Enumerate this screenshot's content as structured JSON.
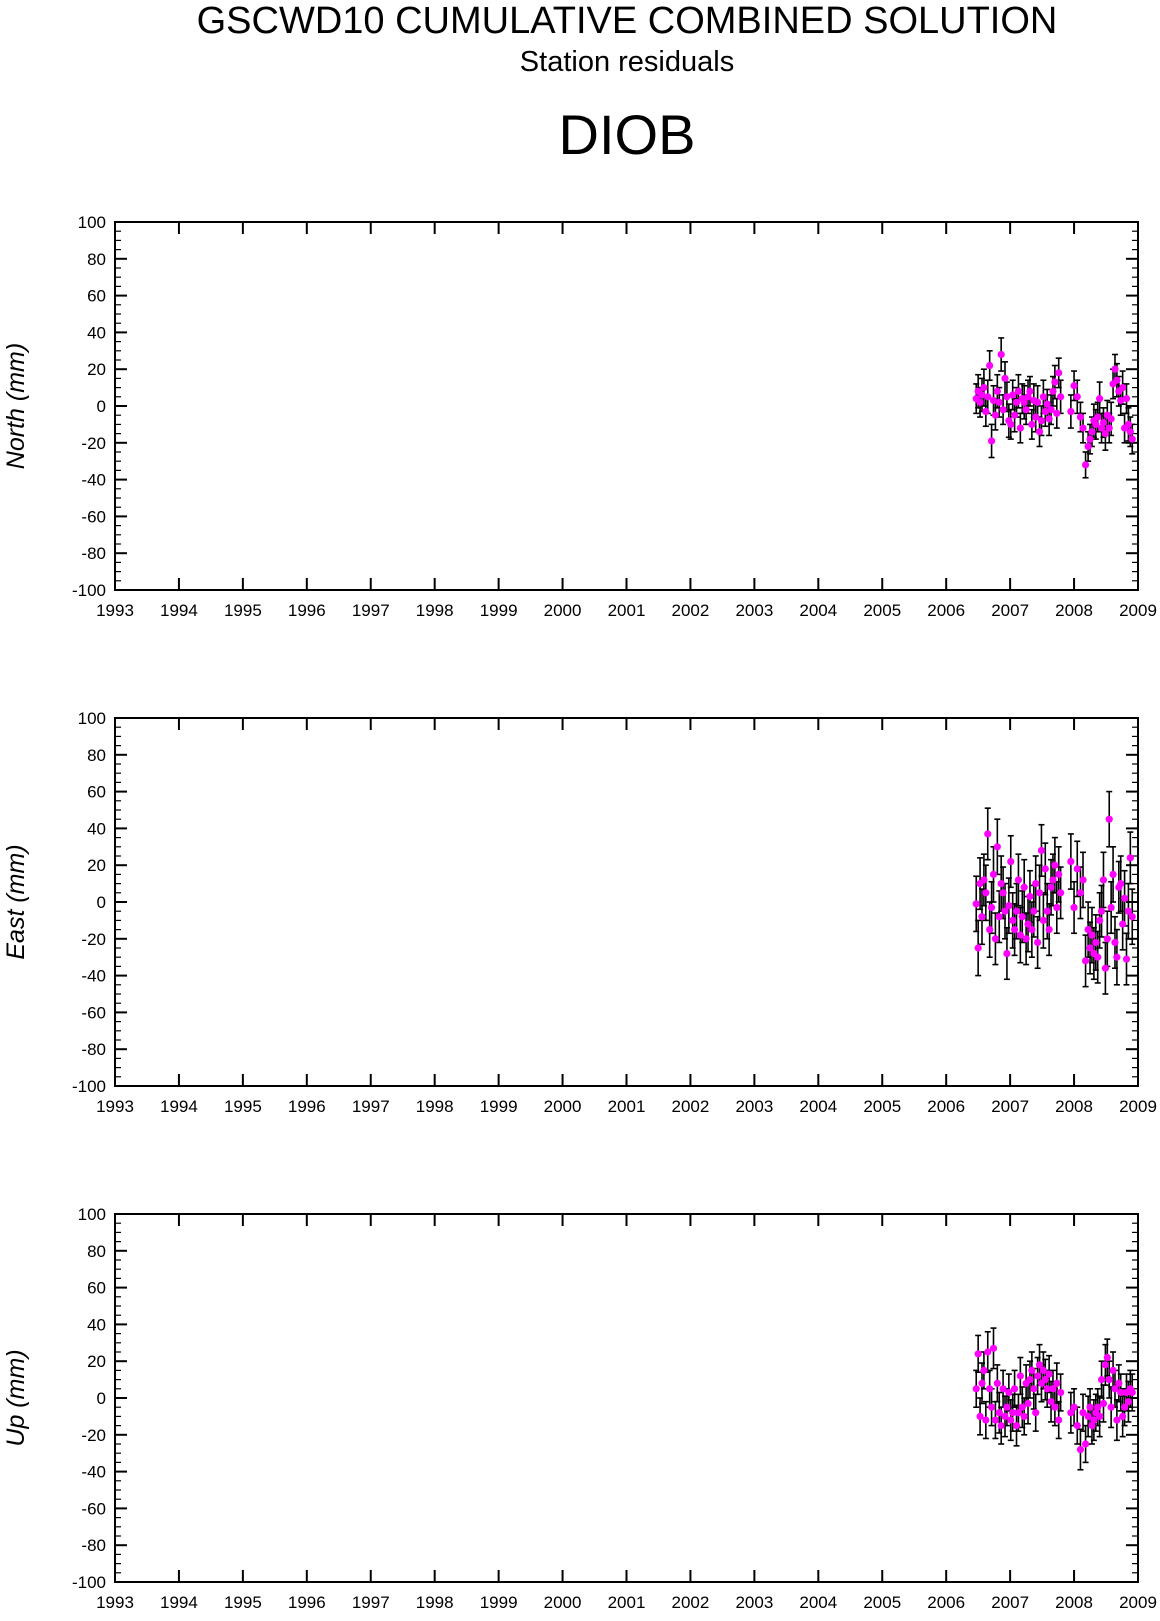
{
  "header": {
    "title": "GSCWD10 CUMULATIVE COMBINED SOLUTION",
    "subtitle": "Station residuals",
    "station": "DIOB"
  },
  "colors": {
    "marker": "#ff00ff",
    "errorbar": "#000000",
    "axis": "#000000"
  },
  "chart_data": [
    {
      "type": "scatter",
      "ylabel": "North (mm)",
      "xlim": [
        1993,
        2009
      ],
      "ylim": [
        -100,
        100
      ],
      "yticks": [
        "100",
        "80",
        "60",
        "40",
        "20",
        "0",
        "-20",
        "-40",
        "-60",
        "-80",
        "-100"
      ],
      "xticks": [
        "1993",
        "1994",
        "1995",
        "1996",
        "1997",
        "1998",
        "1999",
        "2000",
        "2001",
        "2002",
        "2003",
        "2004",
        "2005",
        "2006",
        "2007",
        "2008",
        "2009"
      ],
      "series": [
        {
          "x": [
            2006.47,
            2006.5,
            2006.53,
            2006.56,
            2006.59,
            2006.62,
            2006.65,
            2006.68,
            2006.71,
            2006.74,
            2006.77,
            2006.8,
            2006.83,
            2006.86,
            2006.89,
            2006.92,
            2006.95,
            2006.98,
            2007.01,
            2007.04,
            2007.07,
            2007.1,
            2007.13,
            2007.16,
            2007.19,
            2007.22,
            2007.25,
            2007.28,
            2007.31,
            2007.34,
            2007.37,
            2007.4,
            2007.43,
            2007.46,
            2007.49,
            2007.52,
            2007.55,
            2007.58,
            2007.61,
            2007.64,
            2007.67,
            2007.7,
            2007.73,
            2007.76,
            2007.79,
            2007.95,
            2008.0,
            2008.05,
            2008.1,
            2008.14,
            2008.18,
            2008.22,
            2008.25,
            2008.28,
            2008.31,
            2008.34,
            2008.37,
            2008.4,
            2008.43,
            2008.46,
            2008.49,
            2008.52,
            2008.55,
            2008.58,
            2008.61,
            2008.64,
            2008.67,
            2008.7,
            2008.73,
            2008.76,
            2008.79,
            2008.82,
            2008.85,
            2008.88,
            2008.91
          ],
          "y": [
            4,
            8,
            2,
            6,
            10,
            -3,
            5,
            22,
            -19,
            3,
            -5,
            8,
            2,
            28,
            -2,
            15,
            5,
            -8,
            -10,
            6,
            -5,
            2,
            8,
            -12,
            4,
            2,
            -2,
            5,
            8,
            -10,
            3,
            -6,
            2,
            -14,
            -8,
            5,
            -3,
            1,
            -7,
            -2,
            8,
            13,
            -4,
            18,
            5,
            -3,
            11,
            5,
            -6,
            -12,
            -32,
            -22,
            -18,
            -14,
            -8,
            -10,
            -6,
            4,
            -12,
            -9,
            -15,
            -5,
            -12,
            -7,
            12,
            20,
            14,
            8,
            3,
            10,
            -12,
            4,
            -10,
            -14,
            -18
          ],
          "err": [
            8,
            9,
            8,
            9,
            10,
            8,
            9,
            8,
            9,
            8,
            8,
            9,
            8,
            9,
            8,
            9,
            8,
            9,
            8,
            8,
            9,
            8,
            9,
            8,
            8,
            9,
            8,
            9,
            8,
            8,
            9,
            8,
            9,
            8,
            8,
            9,
            8,
            8,
            9,
            8,
            8,
            9,
            8,
            8,
            9,
            9,
            8,
            9,
            8,
            8,
            7,
            8,
            8,
            8,
            9,
            8,
            8,
            9,
            8,
            8,
            9,
            8,
            8,
            9,
            8,
            8,
            9,
            8,
            8,
            9,
            8,
            8,
            9,
            8,
            8
          ]
        }
      ]
    },
    {
      "type": "scatter",
      "ylabel": "East (mm)",
      "xlim": [
        1993,
        2009
      ],
      "ylim": [
        -100,
        100
      ],
      "yticks": [
        "100",
        "80",
        "60",
        "40",
        "20",
        "0",
        "-20",
        "-40",
        "-60",
        "-80",
        "-100"
      ],
      "xticks": [
        "1993",
        "1994",
        "1995",
        "1996",
        "1997",
        "1998",
        "1999",
        "2000",
        "2001",
        "2002",
        "2003",
        "2004",
        "2005",
        "2006",
        "2007",
        "2008",
        "2009"
      ],
      "series": [
        {
          "x": [
            2006.47,
            2006.5,
            2006.53,
            2006.56,
            2006.59,
            2006.62,
            2006.65,
            2006.68,
            2006.71,
            2006.74,
            2006.77,
            2006.8,
            2006.83,
            2006.86,
            2006.89,
            2006.92,
            2006.95,
            2006.98,
            2007.01,
            2007.04,
            2007.07,
            2007.1,
            2007.13,
            2007.16,
            2007.19,
            2007.22,
            2007.25,
            2007.28,
            2007.31,
            2007.34,
            2007.37,
            2007.4,
            2007.43,
            2007.46,
            2007.49,
            2007.52,
            2007.55,
            2007.58,
            2007.61,
            2007.64,
            2007.67,
            2007.7,
            2007.73,
            2007.76,
            2007.79,
            2007.95,
            2008.0,
            2008.05,
            2008.1,
            2008.14,
            2008.18,
            2008.22,
            2008.25,
            2008.28,
            2008.31,
            2008.34,
            2008.37,
            2008.4,
            2008.43,
            2008.46,
            2008.49,
            2008.52,
            2008.55,
            2008.58,
            2008.61,
            2008.64,
            2008.67,
            2008.7,
            2008.73,
            2008.76,
            2008.79,
            2008.82,
            2008.85,
            2008.88,
            2008.91
          ],
          "y": [
            -1,
            -25,
            10,
            -8,
            12,
            5,
            37,
            -15,
            -3,
            15,
            -20,
            30,
            -8,
            10,
            5,
            -5,
            -28,
            -2,
            22,
            -10,
            -15,
            -5,
            12,
            -18,
            -8,
            8,
            -20,
            -12,
            3,
            -15,
            -5,
            10,
            -22,
            5,
            28,
            -10,
            18,
            -5,
            -15,
            8,
            12,
            20,
            -3,
            15,
            5,
            22,
            -3,
            18,
            5,
            12,
            -32,
            -15,
            -25,
            -18,
            -28,
            -22,
            -30,
            -10,
            -5,
            12,
            -36,
            -20,
            45,
            -3,
            15,
            -22,
            -30,
            8,
            10,
            -12,
            2,
            -31,
            -5,
            24,
            -8
          ],
          "err": [
            15,
            15,
            14,
            15,
            14,
            15,
            14,
            15,
            14,
            15,
            14,
            15,
            14,
            15,
            14,
            15,
            14,
            15,
            14,
            15,
            14,
            15,
            14,
            15,
            14,
            15,
            14,
            15,
            14,
            15,
            14,
            15,
            14,
            15,
            14,
            15,
            14,
            15,
            14,
            15,
            14,
            15,
            14,
            15,
            14,
            15,
            14,
            15,
            14,
            15,
            14,
            15,
            14,
            15,
            14,
            15,
            14,
            15,
            14,
            15,
            14,
            15,
            15,
            14,
            15,
            14,
            15,
            14,
            15,
            14,
            15,
            14,
            15,
            14,
            15
          ]
        }
      ]
    },
    {
      "type": "scatter",
      "ylabel": "Up (mm)",
      "xlim": [
        1993,
        2009
      ],
      "ylim": [
        -100,
        100
      ],
      "yticks": [
        "100",
        "80",
        "60",
        "40",
        "20",
        "0",
        "-20",
        "-40",
        "-60",
        "-80",
        "-100"
      ],
      "xticks": [
        "1993",
        "1994",
        "1995",
        "1996",
        "1997",
        "1998",
        "1999",
        "2000",
        "2001",
        "2002",
        "2003",
        "2004",
        "2005",
        "2006",
        "2007",
        "2008",
        "2009"
      ],
      "series": [
        {
          "x": [
            2006.47,
            2006.5,
            2006.53,
            2006.56,
            2006.59,
            2006.62,
            2006.65,
            2006.68,
            2006.71,
            2006.74,
            2006.77,
            2006.8,
            2006.83,
            2006.86,
            2006.89,
            2006.92,
            2006.95,
            2006.98,
            2007.01,
            2007.04,
            2007.07,
            2007.1,
            2007.13,
            2007.16,
            2007.19,
            2007.22,
            2007.25,
            2007.28,
            2007.31,
            2007.34,
            2007.37,
            2007.4,
            2007.43,
            2007.46,
            2007.49,
            2007.52,
            2007.55,
            2007.58,
            2007.61,
            2007.64,
            2007.67,
            2007.7,
            2007.73,
            2007.76,
            2007.79,
            2007.95,
            2008.0,
            2008.05,
            2008.1,
            2008.14,
            2008.18,
            2008.22,
            2008.25,
            2008.28,
            2008.31,
            2008.34,
            2008.37,
            2008.4,
            2008.43,
            2008.46,
            2008.49,
            2008.52,
            2008.55,
            2008.58,
            2008.61,
            2008.64,
            2008.67,
            2008.7,
            2008.73,
            2008.76,
            2008.79,
            2008.82,
            2008.85,
            2008.88,
            2008.91
          ],
          "y": [
            5,
            24,
            -10,
            8,
            15,
            -12,
            25,
            5,
            -5,
            27,
            -12,
            8,
            -8,
            -15,
            5,
            -10,
            -5,
            3,
            -12,
            -8,
            5,
            -15,
            -8,
            12,
            -5,
            -10,
            8,
            -3,
            10,
            15,
            5,
            -8,
            12,
            18,
            8,
            15,
            10,
            5,
            13,
            -2,
            5,
            -5,
            8,
            -12,
            3,
            -8,
            -5,
            -15,
            -28,
            -8,
            -25,
            -10,
            -5,
            -15,
            -12,
            -8,
            -5,
            -10,
            10,
            -3,
            18,
            22,
            10,
            -5,
            15,
            5,
            -12,
            8,
            3,
            -10,
            -5,
            3,
            -2,
            5,
            3
          ],
          "err": [
            10,
            10,
            10,
            11,
            10,
            10,
            11,
            10,
            10,
            11,
            10,
            10,
            11,
            10,
            10,
            11,
            10,
            10,
            11,
            10,
            10,
            11,
            10,
            10,
            11,
            10,
            10,
            11,
            10,
            10,
            11,
            10,
            10,
            11,
            10,
            10,
            11,
            10,
            10,
            11,
            10,
            10,
            11,
            10,
            10,
            11,
            10,
            10,
            11,
            10,
            10,
            11,
            10,
            10,
            11,
            10,
            10,
            11,
            10,
            10,
            11,
            10,
            10,
            11,
            10,
            10,
            11,
            10,
            10,
            11,
            10,
            10,
            11,
            10,
            10
          ]
        }
      ]
    }
  ]
}
